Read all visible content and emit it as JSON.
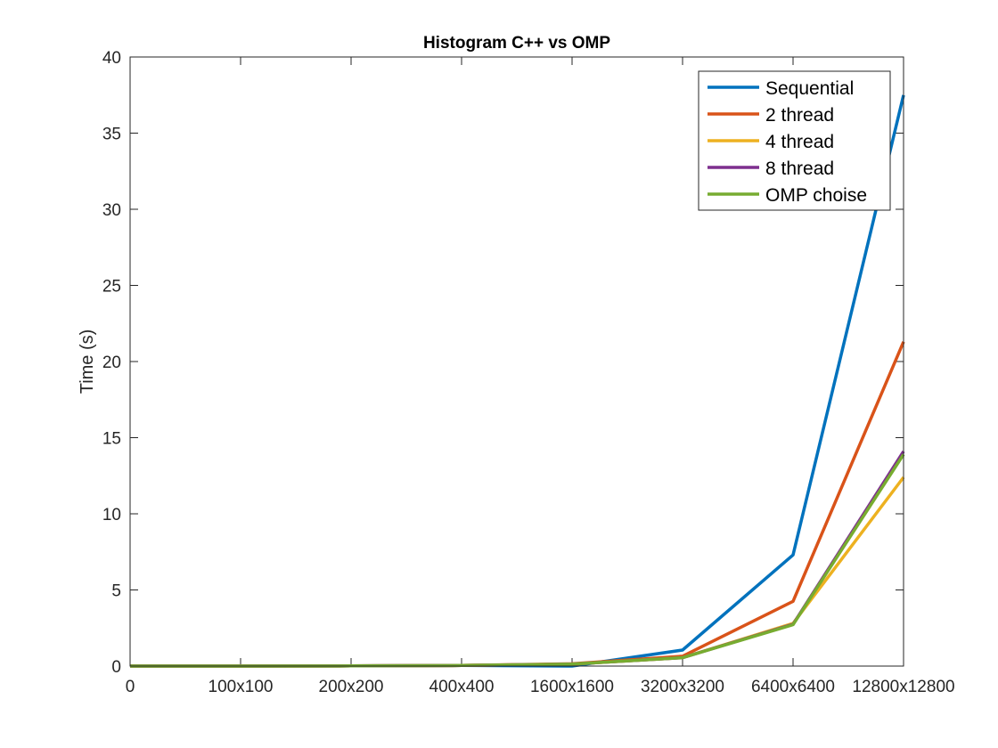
{
  "chart_data": {
    "type": "line",
    "title": "Histogram C++ vs OMP",
    "xlabel": "",
    "ylabel": "Time (s)",
    "categories": [
      "0",
      "100x100",
      "200x200",
      "400x400",
      "1600x1600",
      "3200x3200",
      "6400x6400",
      "12800x12800"
    ],
    "ylim": [
      0,
      40
    ],
    "yticks": [
      0,
      5,
      10,
      15,
      20,
      25,
      30,
      35,
      40
    ],
    "grid": false,
    "legend_position": "top-right",
    "series": [
      {
        "name": "Sequential",
        "color": "#0072BD",
        "values": [
          0.0,
          0.0,
          0.01,
          0.04,
          0.0,
          1.05,
          7.3,
          37.5
        ]
      },
      {
        "name": "2 thread",
        "color": "#D95319",
        "values": [
          0.0,
          0.0,
          0.01,
          0.04,
          0.15,
          0.65,
          4.25,
          21.3
        ]
      },
      {
        "name": "4 thread",
        "color": "#EDB120",
        "values": [
          0.0,
          0.0,
          0.01,
          0.04,
          0.12,
          0.55,
          2.8,
          12.4
        ]
      },
      {
        "name": "8 thread",
        "color": "#7E2F8E",
        "values": [
          0.0,
          0.0,
          0.01,
          0.04,
          0.13,
          0.55,
          2.75,
          14.1
        ]
      },
      {
        "name": "OMP choise",
        "color": "#77AC30",
        "values": [
          0.0,
          0.0,
          0.01,
          0.04,
          0.13,
          0.55,
          2.72,
          13.9
        ]
      }
    ]
  }
}
